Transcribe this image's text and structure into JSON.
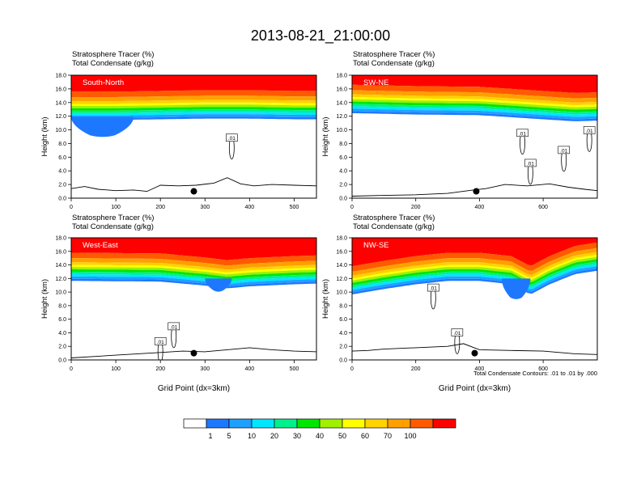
{
  "figure": {
    "title": "2013-08-21_21:00:00",
    "footnote": "Total Condensate Contours: .01 to .01 by .000"
  },
  "colors": {
    "scale": [
      "#ffffff",
      "#1e78ff",
      "#1ea0ff",
      "#00e6ff",
      "#00f08c",
      "#00e600",
      "#a0f000",
      "#ffff00",
      "#ffd200",
      "#ffa000",
      "#ff5a00",
      "#ff0000"
    ],
    "contour": "#000000",
    "terrain": "#000000"
  },
  "colorbar": {
    "labels": [
      "1",
      "5",
      "10",
      "20",
      "30",
      "40",
      "50",
      "60",
      "70",
      "100"
    ]
  },
  "chart_data": [
    {
      "type": "heatmap",
      "name": "South-North",
      "label": "South-North",
      "line1": "Stratosphere Tracer   (%)",
      "line2": "Total Condensate   (g/kg)",
      "ylabel": "Height (km)",
      "xlabel": "",
      "xlim": [
        0,
        550
      ],
      "ylim": [
        0,
        18
      ],
      "xticks": [
        "0",
        "100",
        "200",
        "300",
        "400",
        "500"
      ],
      "xtick_values": [
        0,
        100,
        200,
        300,
        400,
        500
      ],
      "yticks": [
        "0.0",
        "2.0",
        "4.0",
        "6.0",
        "8.0",
        "10.0",
        "12.0",
        "14.0",
        "16.0",
        "18.0"
      ],
      "tropopause_km": [
        [
          0,
          12.8
        ],
        [
          100,
          12.8
        ],
        [
          200,
          12.9
        ],
        [
          300,
          13.0
        ],
        [
          400,
          13.0
        ],
        [
          500,
          12.9
        ],
        [
          550,
          12.9
        ]
      ],
      "blue_blob": {
        "x": [
          0,
          140
        ],
        "ytop": 11.9,
        "ybot": 9.2
      },
      "terrain_km": [
        [
          0,
          1.4
        ],
        [
          30,
          1.7
        ],
        [
          60,
          1.3
        ],
        [
          100,
          1.1
        ],
        [
          140,
          1.2
        ],
        [
          170,
          1.0
        ],
        [
          200,
          1.9
        ],
        [
          240,
          1.8
        ],
        [
          280,
          1.9
        ],
        [
          320,
          2.2
        ],
        [
          350,
          3.0
        ],
        [
          380,
          2.1
        ],
        [
          410,
          1.8
        ],
        [
          450,
          2.0
        ],
        [
          500,
          1.9
        ],
        [
          550,
          1.8
        ]
      ],
      "marker": {
        "x": 275,
        "y": 1.0
      },
      "contour_labels": [
        {
          "text": ".01",
          "x": 360,
          "y": 8.8
        }
      ]
    },
    {
      "type": "heatmap",
      "name": "SW-NE",
      "label": "SW-NE",
      "line1": "Stratosphere Tracer   (%)",
      "line2": "Total Condensate   (g/kg)",
      "ylabel": "Height (km)",
      "xlabel": "",
      "xlim": [
        0,
        770
      ],
      "ylim": [
        0,
        18
      ],
      "xticks": [
        "0",
        "200",
        "400",
        "600"
      ],
      "xtick_values": [
        0,
        200,
        400,
        600
      ],
      "yticks": [
        "0.0",
        "2.0",
        "4.0",
        "6.0",
        "8.0",
        "10.0",
        "12.0",
        "14.0",
        "16.0",
        "18.0"
      ],
      "tropopause_km": [
        [
          0,
          13.8
        ],
        [
          200,
          13.6
        ],
        [
          400,
          13.5
        ],
        [
          500,
          13.2
        ],
        [
          600,
          12.9
        ],
        [
          700,
          12.6
        ],
        [
          770,
          12.7
        ]
      ],
      "blue_blob": null,
      "terrain_km": [
        [
          0,
          0.3
        ],
        [
          100,
          0.4
        ],
        [
          200,
          0.5
        ],
        [
          300,
          0.7
        ],
        [
          380,
          1.2
        ],
        [
          420,
          1.4
        ],
        [
          480,
          2.0
        ],
        [
          550,
          1.8
        ],
        [
          620,
          2.1
        ],
        [
          680,
          1.6
        ],
        [
          730,
          1.3
        ],
        [
          770,
          1.1
        ]
      ],
      "marker": {
        "x": 390,
        "y": 1.0
      },
      "contour_labels": [
        {
          "text": ".01",
          "x": 535,
          "y": 9.5
        },
        {
          "text": ".01",
          "x": 665,
          "y": 7.0
        },
        {
          "text": ".01",
          "x": 560,
          "y": 5.1
        },
        {
          "text": ".01",
          "x": 745,
          "y": 9.9
        }
      ]
    },
    {
      "type": "heatmap",
      "name": "West-East",
      "label": "West-East",
      "line1": "Stratosphere Tracer   (%)",
      "line2": "Total Condensate   (g/kg)",
      "ylabel": "Height (km)",
      "xlabel": "Grid Point (dx=3km)",
      "xlim": [
        0,
        550
      ],
      "ylim": [
        0,
        18
      ],
      "xticks": [
        "0",
        "100",
        "200",
        "300",
        "400",
        "500"
      ],
      "xtick_values": [
        0,
        100,
        200,
        300,
        400,
        500
      ],
      "yticks": [
        "0.0",
        "2.0",
        "4.0",
        "6.0",
        "8.0",
        "10.0",
        "12.0",
        "14.0",
        "16.0",
        "18.0"
      ],
      "tropopause_km": [
        [
          0,
          13.0
        ],
        [
          200,
          12.9
        ],
        [
          300,
          12.3
        ],
        [
          350,
          11.9
        ],
        [
          400,
          12.2
        ],
        [
          500,
          12.5
        ],
        [
          550,
          12.6
        ]
      ],
      "blue_blob": {
        "x": [
          300,
          360
        ],
        "ytop": 12.0,
        "ybot": 10.3
      },
      "terrain_km": [
        [
          0,
          0.3
        ],
        [
          50,
          0.5
        ],
        [
          100,
          0.7
        ],
        [
          150,
          0.9
        ],
        [
          200,
          1.1
        ],
        [
          250,
          1.3
        ],
        [
          300,
          1.2
        ],
        [
          350,
          1.5
        ],
        [
          400,
          1.8
        ],
        [
          450,
          1.5
        ],
        [
          500,
          1.3
        ],
        [
          550,
          1.2
        ]
      ],
      "marker": {
        "x": 275,
        "y": 1.0
      },
      "contour_labels": [
        {
          "text": ".01",
          "x": 230,
          "y": 4.9
        },
        {
          "text": ".01",
          "x": 200,
          "y": 2.7
        }
      ]
    },
    {
      "type": "heatmap",
      "name": "NW-SE",
      "label": "NW-SE",
      "line1": "Stratosphere Tracer   (%)",
      "line2": "Total Condensate   (g/kg)",
      "ylabel": "Height (km)",
      "xlabel": "Grid Point (dx=3km)",
      "xlim": [
        0,
        770
      ],
      "ylim": [
        0,
        18
      ],
      "xticks": [
        "0",
        "200",
        "400",
        "600"
      ],
      "xtick_values": [
        0,
        200,
        400,
        600
      ],
      "yticks": [
        "0.0",
        "2.0",
        "4.0",
        "6.0",
        "8.0",
        "10.0",
        "12.0",
        "14.0",
        "16.0",
        "18.0"
      ],
      "tropopause_km": [
        [
          0,
          11.0
        ],
        [
          100,
          11.8
        ],
        [
          200,
          12.5
        ],
        [
          300,
          13.0
        ],
        [
          400,
          13.0
        ],
        [
          500,
          12.5
        ],
        [
          560,
          11.0
        ],
        [
          620,
          12.5
        ],
        [
          700,
          14.0
        ],
        [
          770,
          14.5
        ]
      ],
      "blue_blob": {
        "x": [
          470,
          560
        ],
        "ytop": 12.0,
        "ybot": 9.2
      },
      "terrain_km": [
        [
          0,
          1.3
        ],
        [
          50,
          1.4
        ],
        [
          100,
          1.6
        ],
        [
          200,
          1.8
        ],
        [
          300,
          2.0
        ],
        [
          350,
          2.4
        ],
        [
          400,
          1.5
        ],
        [
          500,
          1.4
        ],
        [
          600,
          1.3
        ],
        [
          700,
          0.9
        ],
        [
          770,
          0.8
        ]
      ],
      "marker": {
        "x": 385,
        "y": 1.0
      },
      "contour_labels": [
        {
          "text": ".01",
          "x": 255,
          "y": 10.6
        },
        {
          "text": ".01",
          "x": 330,
          "y": 4.0
        }
      ]
    }
  ]
}
